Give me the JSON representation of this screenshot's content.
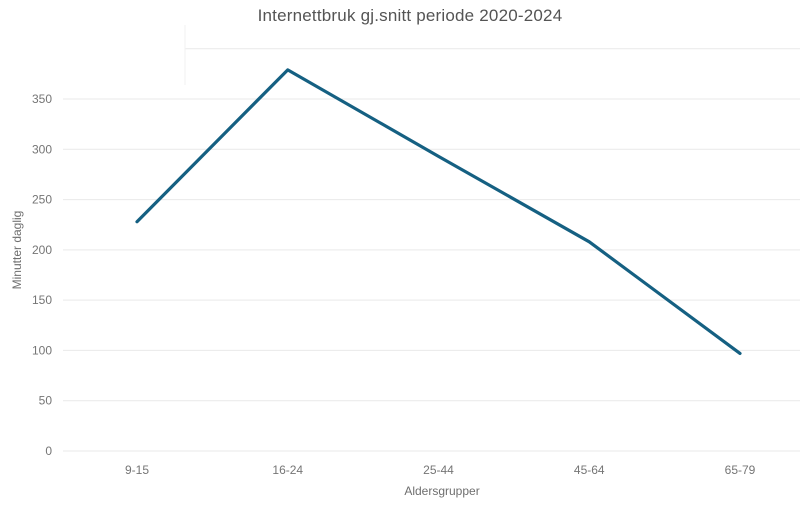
{
  "chart_data": {
    "type": "line",
    "title": "Internettbruk gj.snitt periode 2020-2024",
    "xlabel": "Aldersgrupper",
    "ylabel": "Minutter daglig",
    "categories": [
      "9-15",
      "16-24",
      "25-44",
      "45-64",
      "65-79"
    ],
    "values": [
      228,
      379,
      293,
      208,
      97
    ],
    "ylim": [
      0,
      400
    ],
    "y_ticks": [
      0,
      50,
      100,
      150,
      200,
      250,
      300,
      350
    ],
    "grid": "horizontal",
    "legend": false
  },
  "colors": {
    "line": "#156082",
    "grid": "#e9e9e9",
    "artifact": "#f1f1f1",
    "tick_text": "#757575",
    "title_text": "#545454",
    "axis_title_text": "#6e6e6e",
    "background": "#ffffff"
  }
}
